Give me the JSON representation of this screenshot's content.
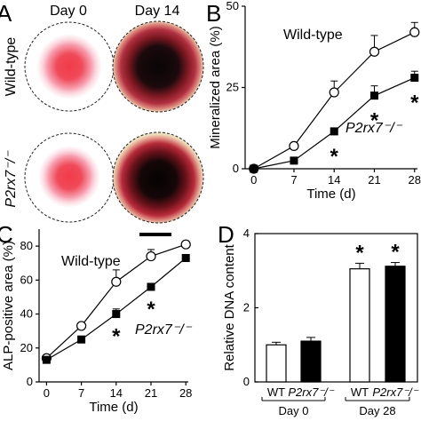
{
  "panel_a": {
    "label": "A",
    "col_headers": [
      "Day 0",
      "Day 14"
    ],
    "row_labels": [
      "Wild-type",
      "P2rx7⁻/⁻"
    ]
  },
  "chart_data": [
    {
      "panel": "B",
      "type": "line",
      "x": [
        0,
        7,
        14,
        21,
        28
      ],
      "xticks": [
        "0",
        "7",
        "14",
        "21",
        "28"
      ],
      "yticks": [
        "0",
        "25",
        "50"
      ],
      "xlim": [
        -1.5,
        28.5
      ],
      "ylim": [
        0,
        50
      ],
      "xlabel": "Time (d)",
      "ylabel": "Mineralized area (%)",
      "annotations": [
        "Wild-type",
        "P2rx7⁻/⁻"
      ],
      "series": [
        {
          "values": [
            0,
            7,
            23.5,
            36,
            42
          ],
          "err": [
            0,
            0,
            3.5,
            5,
            3
          ],
          "marker": "open-circle"
        },
        {
          "values": [
            0,
            2.5,
            11.5,
            22.5,
            28
          ],
          "err": [
            0,
            0,
            0,
            3,
            2
          ],
          "marker": "filled-square"
        }
      ],
      "significant": [
        14,
        21,
        28
      ],
      "grid": false
    },
    {
      "panel": "C",
      "type": "line",
      "x": [
        0,
        7,
        14,
        21,
        28
      ],
      "xticks": [
        "0",
        "7",
        "14",
        "21",
        "28"
      ],
      "yticks": [
        "0",
        "20",
        "40",
        "60",
        "80"
      ],
      "xlim": [
        -1.5,
        28.5
      ],
      "ylim": [
        0,
        90
      ],
      "xlabel": "Time (d)",
      "ylabel": "ALP-positive area (%)",
      "annotations": [
        "Wild-type",
        "P2rx7⁻/⁻"
      ],
      "series": [
        {
          "values": [
            14,
            33,
            59,
            74,
            81
          ],
          "err": [
            0,
            0,
            7,
            4,
            0
          ],
          "marker": "open-circle"
        },
        {
          "values": [
            13,
            25,
            40,
            56,
            73
          ],
          "err": [
            0,
            0,
            3,
            0,
            0
          ],
          "marker": "filled-square"
        }
      ],
      "significant": [
        14,
        21
      ],
      "grid": false
    },
    {
      "panel": "D",
      "type": "bar",
      "categories": [
        "WT",
        "P2rx7⁻/⁻",
        "WT",
        "P2rx7⁻/⁻"
      ],
      "groups": [
        "Day 0",
        "Day 28"
      ],
      "values": [
        1.0,
        1.1,
        3.05,
        3.12
      ],
      "err": [
        0.07,
        0.1,
        0.15,
        0.1
      ],
      "fills": [
        "#ffffff",
        "#000000",
        "#ffffff",
        "#000000"
      ],
      "yticks": [
        "0",
        "2",
        "4"
      ],
      "ylim": [
        0,
        4
      ],
      "ylabel": "Relative DNA content",
      "significant": [
        2,
        3
      ],
      "grid": false
    }
  ]
}
